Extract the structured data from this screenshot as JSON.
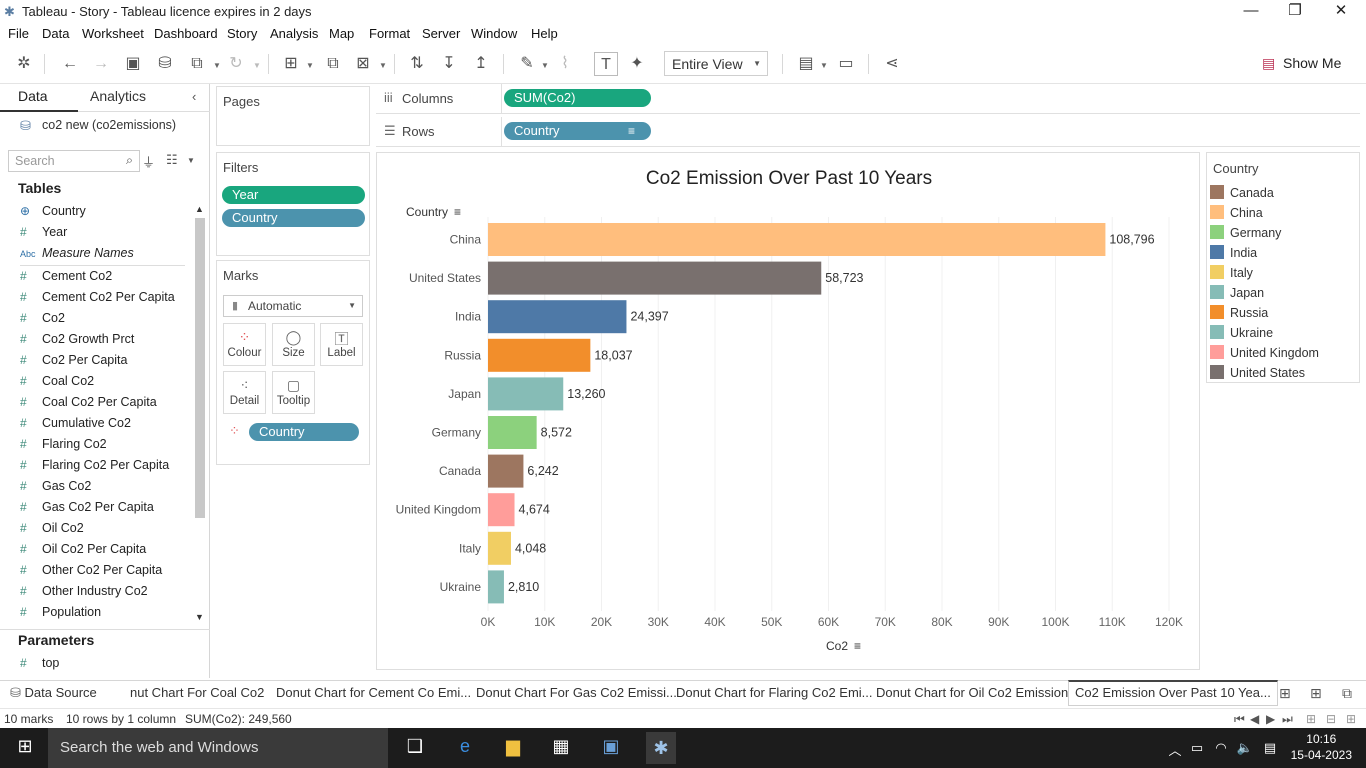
{
  "window": {
    "title": "Tableau - Story - Tableau licence expires in 2 days"
  },
  "menu": [
    "File",
    "Data",
    "Worksheet",
    "Dashboard",
    "Story",
    "Analysis",
    "Map",
    "Format",
    "Server",
    "Window",
    "Help"
  ],
  "toolbar": {
    "fit": "Entire View",
    "show_me": "Show Me"
  },
  "data_pane": {
    "tabs": [
      "Data",
      "Analytics"
    ],
    "source": "co2 new (co2emissions)",
    "search_placeholder": "Search",
    "tables_header": "Tables",
    "fields": [
      {
        "name": "Country",
        "icon": "globe"
      },
      {
        "name": "Year",
        "icon": "#"
      },
      {
        "name": "Measure Names",
        "icon": "Abc"
      },
      {
        "name": "Cement Co2",
        "icon": "#"
      },
      {
        "name": "Cement Co2 Per Capita",
        "icon": "#"
      },
      {
        "name": "Co2",
        "icon": "#"
      },
      {
        "name": "Co2 Growth Prct",
        "icon": "#"
      },
      {
        "name": "Co2 Per Capita",
        "icon": "#"
      },
      {
        "name": "Coal Co2",
        "icon": "#"
      },
      {
        "name": "Coal Co2 Per Capita",
        "icon": "#"
      },
      {
        "name": "Cumulative Co2",
        "icon": "#"
      },
      {
        "name": "Flaring Co2",
        "icon": "#"
      },
      {
        "name": "Flaring Co2 Per Capita",
        "icon": "#"
      },
      {
        "name": "Gas Co2",
        "icon": "#"
      },
      {
        "name": "Gas Co2 Per Capita",
        "icon": "#"
      },
      {
        "name": "Oil Co2",
        "icon": "#"
      },
      {
        "name": "Oil Co2 Per Capita",
        "icon": "#"
      },
      {
        "name": "Other Co2 Per Capita",
        "icon": "#"
      },
      {
        "name": "Other Industry Co2",
        "icon": "#"
      },
      {
        "name": "Population",
        "icon": "#"
      }
    ],
    "parameters_header": "Parameters",
    "parameters": [
      {
        "name": "top",
        "icon": "#"
      }
    ]
  },
  "pages": {
    "label": "Pages"
  },
  "filters": {
    "label": "Filters",
    "items": [
      "Year",
      "Country"
    ]
  },
  "marks": {
    "label": "Marks",
    "type": "Automatic",
    "buttons": [
      "Colour",
      "Size",
      "Label",
      "Detail",
      "Tooltip"
    ],
    "pill": "Country"
  },
  "shelves": {
    "columns_label": "Columns",
    "columns_pill": "SUM(Co2)",
    "rows_label": "Rows",
    "rows_pill": "Country"
  },
  "chart_data": {
    "type": "bar",
    "title": "Co2 Emission Over Past 10 Years",
    "ylabel": "Country",
    "xlabel": "Co2",
    "categories": [
      "China",
      "United States",
      "India",
      "Russia",
      "Japan",
      "Germany",
      "Canada",
      "United Kingdom",
      "Italy",
      "Ukraine"
    ],
    "values": [
      108796,
      58723,
      24397,
      18037,
      13260,
      8572,
      6242,
      4674,
      4048,
      2810
    ],
    "value_labels": [
      "108,796",
      "58,723",
      "24,397",
      "18,037",
      "13,260",
      "8,572",
      "6,242",
      "4,674",
      "4,048",
      "2,810"
    ],
    "colors": [
      "#ffbe7d",
      "#79706e",
      "#4e79a7",
      "#f28e2b",
      "#86bcb6",
      "#8cd17d",
      "#9d7660",
      "#ff9d9a",
      "#f1ce63",
      "#86bcb6"
    ],
    "xticks": [
      "0K",
      "10K",
      "20K",
      "30K",
      "40K",
      "50K",
      "60K",
      "70K",
      "80K",
      "90K",
      "100K",
      "110K",
      "120K"
    ],
    "xlim": [
      0,
      120000
    ],
    "grid": true
  },
  "legend": {
    "title": "Country",
    "items": [
      {
        "label": "Canada",
        "color": "#9d7660"
      },
      {
        "label": "China",
        "color": "#ffbe7d"
      },
      {
        "label": "Germany",
        "color": "#8cd17d"
      },
      {
        "label": "India",
        "color": "#4e79a7"
      },
      {
        "label": "Italy",
        "color": "#f1ce63"
      },
      {
        "label": "Japan",
        "color": "#86bcb6"
      },
      {
        "label": "Russia",
        "color": "#f28e2b"
      },
      {
        "label": "Ukraine",
        "color": "#86bcb6"
      },
      {
        "label": "United Kingdom",
        "color": "#ff9d9a"
      },
      {
        "label": "United States",
        "color": "#79706e"
      }
    ]
  },
  "sheet_tabs": [
    "Data Source",
    "nut Chart For Coal Co2",
    "Donut Chart for Cement Co Emi...",
    "Donut Chart For Gas Co2 Emissi...",
    "Donut Chart for Flaring Co2 Emi...",
    "Donut Chart for Oil Co2 Emission",
    "Co2 Emission Over Past 10 Yea..."
  ],
  "status": {
    "marks": "10 marks",
    "rows": "10 rows by 1 column",
    "sum": "SUM(Co2): 249,560"
  },
  "taskbar": {
    "search": "Search the web and Windows",
    "time": "10:16",
    "date": "15-04-2023"
  }
}
